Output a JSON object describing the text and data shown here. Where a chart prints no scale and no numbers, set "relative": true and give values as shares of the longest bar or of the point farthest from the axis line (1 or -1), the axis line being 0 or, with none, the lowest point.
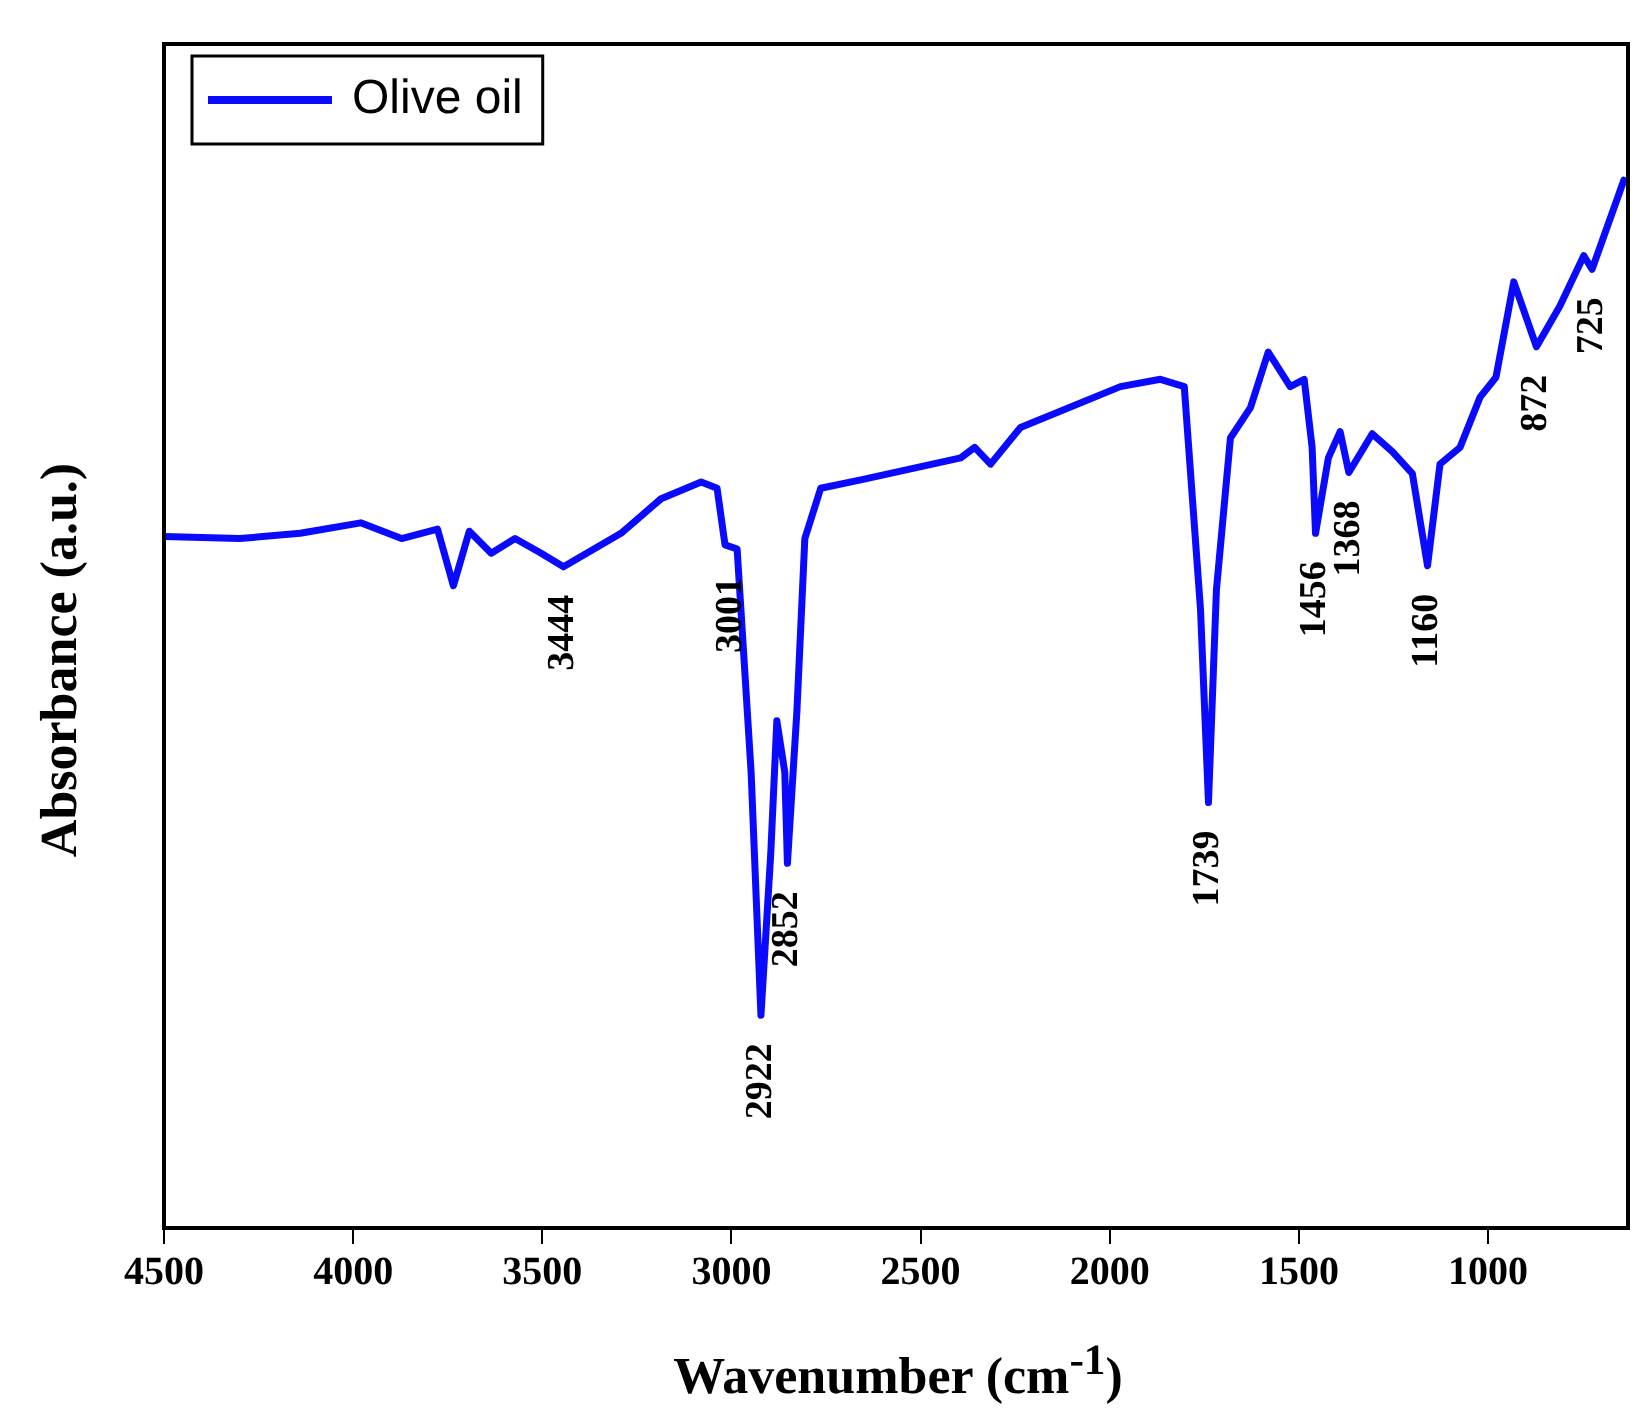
{
  "chart_data": {
    "type": "line",
    "relative": true,
    "xlabel": "Wavenumber (cm$^{-1}$)",
    "ylabel": "Absorbance (a.u.)",
    "xlim": [
      4500,
      630
    ],
    "xticks": [
      4500,
      4000,
      3500,
      3000,
      2500,
      2000,
      1500,
      1000
    ],
    "legend": "top left",
    "marker": "none",
    "line_style": "solid",
    "series": [
      {
        "name": "Olive oil",
        "color": "#0a0aff",
        "x": [
          4500,
          4300,
          4140,
          3980,
          3872,
          3777,
          3735,
          3693,
          3635,
          3572,
          3503,
          3444,
          3292,
          3186,
          3080,
          3038,
          3017,
          2985,
          2948,
          2922,
          2896,
          2880,
          2859,
          2852,
          2827,
          2806,
          2764,
          2658,
          2394,
          2357,
          2315,
          2236,
          1972,
          1866,
          1803,
          1760,
          1739,
          1718,
          1681,
          1628,
          1581,
          1523,
          1486,
          1465,
          1456,
          1422,
          1391,
          1368,
          1306,
          1253,
          1200,
          1160,
          1127,
          1074,
          1021,
          979,
          932,
          872,
          810,
          747,
          725,
          641
        ],
        "values": [
          0.66,
          0.658,
          0.663,
          0.673,
          0.658,
          0.667,
          0.613,
          0.665,
          0.644,
          0.658,
          0.644,
          0.631,
          0.663,
          0.696,
          0.712,
          0.706,
          0.652,
          0.648,
          0.435,
          0.203,
          0.358,
          0.484,
          0.435,
          0.348,
          0.493,
          0.658,
          0.706,
          0.714,
          0.735,
          0.745,
          0.729,
          0.764,
          0.803,
          0.81,
          0.803,
          0.59,
          0.406,
          0.609,
          0.754,
          0.783,
          0.836,
          0.803,
          0.81,
          0.745,
          0.663,
          0.735,
          0.76,
          0.721,
          0.758,
          0.741,
          0.72,
          0.632,
          0.729,
          0.745,
          0.793,
          0.812,
          0.903,
          0.841,
          0.88,
          0.928,
          0.915,
          1
        ]
      }
    ],
    "annotations": [
      {
        "text": "3444",
        "x": 3444,
        "y": 0.631
      },
      {
        "text": "3001",
        "x": 3001,
        "y": 0.648
      },
      {
        "text": "2922",
        "x": 2922,
        "y": 0.203
      },
      {
        "text": "2852",
        "x": 2852,
        "y": 0.348
      },
      {
        "text": "1739",
        "x": 1739,
        "y": 0.406
      },
      {
        "text": "1456",
        "x": 1456,
        "y": 0.663
      },
      {
        "text": "1368",
        "x": 1368,
        "y": 0.721
      },
      {
        "text": "1160",
        "x": 1160,
        "y": 0.632
      },
      {
        "text": "872",
        "x": 872,
        "y": 0.841
      },
      {
        "text": "725",
        "x": 725,
        "y": 0.915
      }
    ]
  }
}
